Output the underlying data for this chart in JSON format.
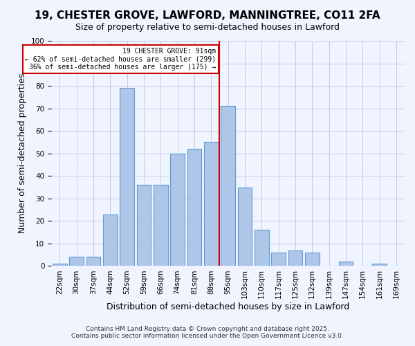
{
  "title": "19, CHESTER GROVE, LAWFORD, MANNINGTREE, CO11 2FA",
  "subtitle": "Size of property relative to semi-detached houses in Lawford",
  "xlabel": "Distribution of semi-detached houses by size in Lawford",
  "ylabel": "Number of semi-detached properties",
  "bin_labels": [
    "22sqm",
    "30sqm",
    "37sqm",
    "44sqm",
    "52sqm",
    "59sqm",
    "66sqm",
    "74sqm",
    "81sqm",
    "88sqm",
    "95sqm",
    "103sqm",
    "110sqm",
    "117sqm",
    "125sqm",
    "132sqm",
    "139sqm",
    "147sqm",
    "154sqm",
    "161sqm",
    "169sqm"
  ],
  "bar_values": [
    1,
    4,
    4,
    23,
    79,
    36,
    36,
    50,
    52,
    55,
    71,
    35,
    16,
    6,
    7,
    6,
    0,
    2,
    0,
    1,
    0
  ],
  "bar_color": "#aec6e8",
  "bar_edge_color": "#5b9bd5",
  "marker_bin_index": 9.5,
  "annotation_title": "19 CHESTER GROVE: 91sqm",
  "annotation_line1": "← 62% of semi-detached houses are smaller (299)",
  "annotation_line2": "36% of semi-detached houses are larger (175) →",
  "annotation_box_color": "#ffffff",
  "annotation_border_color": "#cc0000",
  "marker_line_color": "#cc0000",
  "ylim": [
    0,
    100
  ],
  "yticks": [
    0,
    10,
    20,
    30,
    40,
    50,
    60,
    70,
    80,
    90,
    100
  ],
  "background_color": "#f0f4ff",
  "footer_line1": "Contains HM Land Registry data © Crown copyright and database right 2025.",
  "footer_line2": "Contains public sector information licensed under the Open Government Licence v3.0.",
  "title_fontsize": 11,
  "subtitle_fontsize": 9,
  "xlabel_fontsize": 9,
  "ylabel_fontsize": 9,
  "tick_fontsize": 7.5,
  "footer_fontsize": 6.5
}
